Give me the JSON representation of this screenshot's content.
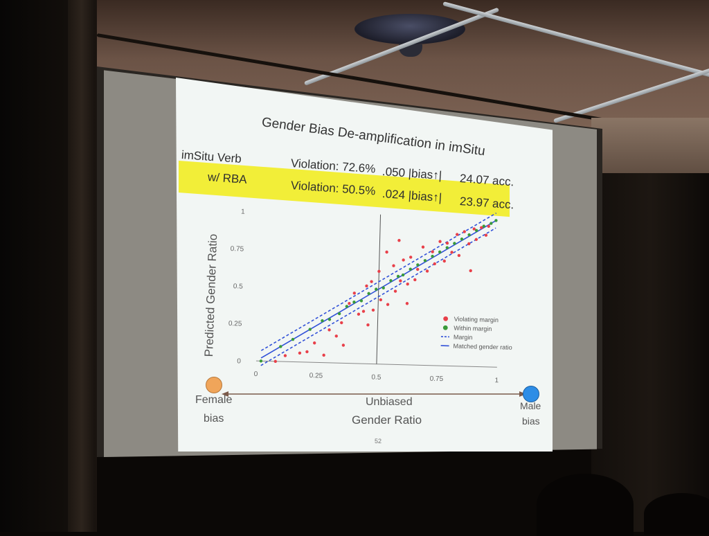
{
  "slide": {
    "title": "Gender Bias De-amplification in imSitu",
    "page_number": "52",
    "rows": [
      {
        "label": "imSitu Verb",
        "violation": "Violation: 72.6%",
        "bias": ".050 |bias↑|",
        "acc": "24.07 acc.",
        "highlighted": false
      },
      {
        "label": "w/ RBA",
        "violation": "Violation: 50.5%",
        "bias": ".024 |bias↑|",
        "acc": "23.97 acc.",
        "highlighted": true
      }
    ],
    "highlight_color": "#f2ee38",
    "bottom": {
      "left_label_1": "Female",
      "left_label_2": "bias",
      "center_label_1": "Unbiased",
      "center_label_2": "Gender Ratio",
      "right_label_1": "Male",
      "right_label_2": "bias",
      "female_color": "#f0a55a",
      "male_color": "#2d8de6"
    }
  },
  "chart_data": {
    "type": "scatter",
    "title": "",
    "xlabel": "",
    "ylabel": "Predicted Gender Ratio",
    "xlim": [
      0,
      1
    ],
    "ylim": [
      0,
      1
    ],
    "x_ticks": [
      "0",
      "0.25",
      "0.5",
      "0.75",
      "1"
    ],
    "y_ticks": [
      "0",
      "0.25",
      "0.5",
      "0.75",
      "1"
    ],
    "grid": false,
    "legend_position": "bottom-right",
    "reference_lines": [
      {
        "name": "Matched gender ratio",
        "style": "solid",
        "color": "#3050d8",
        "intercept": 0.0,
        "slope": 1.0
      },
      {
        "name": "Margin",
        "style": "dashed",
        "color": "#3050d8",
        "intercept": 0.05,
        "slope": 1.0
      },
      {
        "name": "Margin",
        "style": "dashed",
        "color": "#3050d8",
        "intercept": -0.05,
        "slope": 1.0
      }
    ],
    "vertical_line_x": 0.5,
    "series": [
      {
        "name": "Violating margin",
        "color": "#e8404a",
        "points": [
          [
            0.08,
            0.0
          ],
          [
            0.12,
            0.04
          ],
          [
            0.18,
            0.06
          ],
          [
            0.21,
            0.07
          ],
          [
            0.24,
            0.13
          ],
          [
            0.28,
            0.05
          ],
          [
            0.3,
            0.22
          ],
          [
            0.33,
            0.18
          ],
          [
            0.35,
            0.27
          ],
          [
            0.38,
            0.4
          ],
          [
            0.4,
            0.47
          ],
          [
            0.42,
            0.33
          ],
          [
            0.44,
            0.35
          ],
          [
            0.45,
            0.52
          ],
          [
            0.47,
            0.55
          ],
          [
            0.48,
            0.36
          ],
          [
            0.5,
            0.62
          ],
          [
            0.51,
            0.43
          ],
          [
            0.53,
            0.75
          ],
          [
            0.54,
            0.4
          ],
          [
            0.56,
            0.66
          ],
          [
            0.57,
            0.49
          ],
          [
            0.59,
            0.56
          ],
          [
            0.6,
            0.7
          ],
          [
            0.62,
            0.54
          ],
          [
            0.63,
            0.72
          ],
          [
            0.65,
            0.57
          ],
          [
            0.66,
            0.64
          ],
          [
            0.68,
            0.79
          ],
          [
            0.7,
            0.63
          ],
          [
            0.72,
            0.76
          ],
          [
            0.73,
            0.68
          ],
          [
            0.75,
            0.83
          ],
          [
            0.77,
            0.7
          ],
          [
            0.78,
            0.82
          ],
          [
            0.8,
            0.76
          ],
          [
            0.82,
            0.88
          ],
          [
            0.83,
            0.74
          ],
          [
            0.85,
            0.9
          ],
          [
            0.87,
            0.82
          ],
          [
            0.89,
            0.92
          ],
          [
            0.9,
            0.85
          ],
          [
            0.92,
            0.93
          ],
          [
            0.94,
            0.88
          ],
          [
            0.95,
            0.94
          ],
          [
            0.58,
            0.83
          ],
          [
            0.46,
            0.26
          ],
          [
            0.36,
            0.12
          ],
          [
            0.62,
            0.41
          ],
          [
            0.88,
            0.64
          ]
        ]
      },
      {
        "name": "Within margin",
        "color": "#3a9a3a",
        "points": [
          [
            0.02,
            0.0
          ],
          [
            0.1,
            0.1
          ],
          [
            0.15,
            0.15
          ],
          [
            0.22,
            0.22
          ],
          [
            0.27,
            0.28
          ],
          [
            0.3,
            0.29
          ],
          [
            0.34,
            0.33
          ],
          [
            0.37,
            0.38
          ],
          [
            0.4,
            0.41
          ],
          [
            0.43,
            0.42
          ],
          [
            0.46,
            0.47
          ],
          [
            0.49,
            0.5
          ],
          [
            0.52,
            0.51
          ],
          [
            0.55,
            0.56
          ],
          [
            0.58,
            0.59
          ],
          [
            0.6,
            0.6
          ],
          [
            0.63,
            0.64
          ],
          [
            0.66,
            0.67
          ],
          [
            0.69,
            0.7
          ],
          [
            0.72,
            0.73
          ],
          [
            0.75,
            0.76
          ],
          [
            0.78,
            0.79
          ],
          [
            0.81,
            0.82
          ],
          [
            0.84,
            0.85
          ],
          [
            0.87,
            0.88
          ],
          [
            0.9,
            0.91
          ],
          [
            0.93,
            0.94
          ],
          [
            0.96,
            0.96
          ],
          [
            0.98,
            0.98
          ]
        ]
      }
    ],
    "legend": [
      {
        "label": "Violating margin",
        "marker": "dot",
        "color": "#e8404a"
      },
      {
        "label": "Within margin",
        "marker": "dot",
        "color": "#3a9a3a"
      },
      {
        "label": "Margin",
        "marker": "dashed",
        "color": "#3050d8"
      },
      {
        "label": "Matched gender ratio",
        "marker": "solid",
        "color": "#3050d8"
      }
    ]
  }
}
